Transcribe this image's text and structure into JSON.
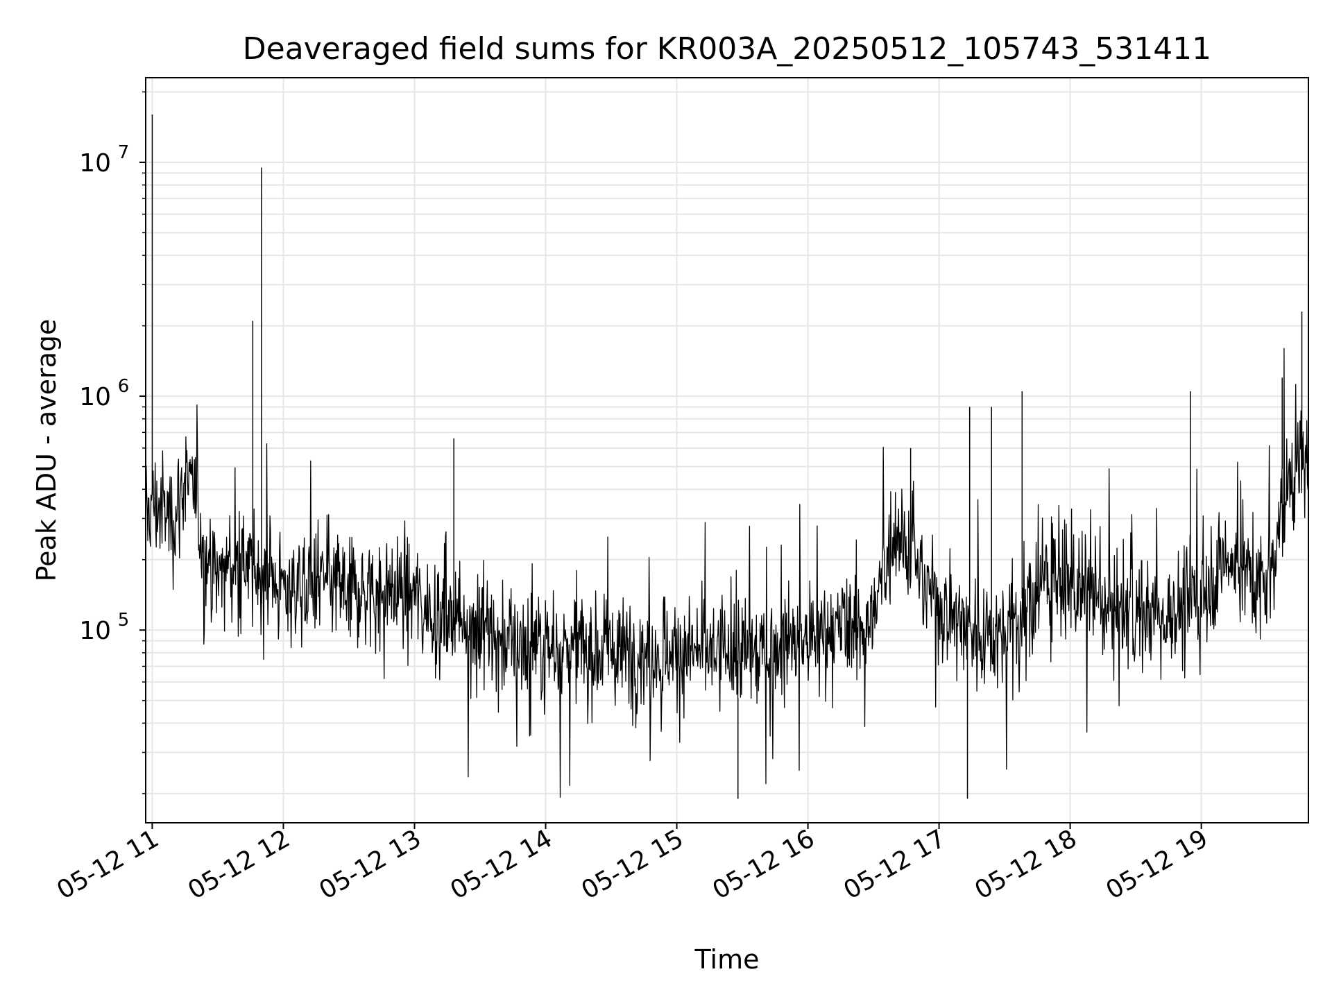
{
  "chart_data": {
    "type": "line",
    "title": "Deaveraged field sums for KR003A_20250512_105743_531411",
    "xlabel": "Time",
    "ylabel": "Peak ADU - average",
    "y_scale": "log",
    "ylim": [
      15000,
      23000000
    ],
    "xlim": [
      "2025-05-12 10:57",
      "2025-05-12 19:49"
    ],
    "grid": true,
    "line_color": "#000000",
    "grid_color": "#e6e6e6",
    "x_ticks": [
      {
        "t": "2025-05-12 11:00",
        "label": "05-12 11"
      },
      {
        "t": "2025-05-12 12:00",
        "label": "05-12 12"
      },
      {
        "t": "2025-05-12 13:00",
        "label": "05-12 13"
      },
      {
        "t": "2025-05-12 14:00",
        "label": "05-12 14"
      },
      {
        "t": "2025-05-12 15:00",
        "label": "05-12 15"
      },
      {
        "t": "2025-05-12 16:00",
        "label": "05-12 16"
      },
      {
        "t": "2025-05-12 17:00",
        "label": "05-12 17"
      },
      {
        "t": "2025-05-12 18:00",
        "label": "05-12 18"
      },
      {
        "t": "2025-05-12 19:00",
        "label": "05-12 19"
      }
    ],
    "y_ticks": [
      {
        "value": 100000,
        "base": "10",
        "exp": "5"
      },
      {
        "value": 1000000,
        "base": "10",
        "exp": "6"
      },
      {
        "value": 10000000,
        "base": "10",
        "exp": "7"
      }
    ],
    "series": [
      {
        "x": [
          "2025-05-12 10:57",
          "2025-05-12 11:00",
          "2025-05-12 11:05",
          "2025-05-12 11:10",
          "2025-05-12 11:15",
          "2025-05-12 11:20",
          "2025-05-12 11:25",
          "2025-05-12 11:30",
          "2025-05-12 11:35",
          "2025-05-12 11:40",
          "2025-05-12 11:45",
          "2025-05-12 11:50",
          "2025-05-12 11:55",
          "2025-05-12 12:00",
          "2025-05-12 12:10",
          "2025-05-12 12:20",
          "2025-05-12 12:30",
          "2025-05-12 12:40",
          "2025-05-12 12:50",
          "2025-05-12 13:00",
          "2025-05-12 13:10",
          "2025-05-12 13:20",
          "2025-05-12 13:30",
          "2025-05-12 13:40",
          "2025-05-12 13:50",
          "2025-05-12 14:00",
          "2025-05-12 14:15",
          "2025-05-12 14:30",
          "2025-05-12 14:45",
          "2025-05-12 15:00",
          "2025-05-12 15:15",
          "2025-05-12 15:30",
          "2025-05-12 15:45",
          "2025-05-12 16:00",
          "2025-05-12 16:15",
          "2025-05-12 16:30",
          "2025-05-12 16:40",
          "2025-05-12 16:50",
          "2025-05-12 17:00",
          "2025-05-12 17:10",
          "2025-05-12 17:20",
          "2025-05-12 17:30",
          "2025-05-12 17:40",
          "2025-05-12 17:50",
          "2025-05-12 18:00",
          "2025-05-12 18:15",
          "2025-05-12 18:30",
          "2025-05-12 18:45",
          "2025-05-12 19:00",
          "2025-05-12 19:10",
          "2025-05-12 19:20",
          "2025-05-12 19:30",
          "2025-05-12 19:40",
          "2025-05-12 19:49"
        ],
        "y": [
          300000,
          350000,
          320000,
          300000,
          450000,
          350000,
          180000,
          170000,
          190000,
          185000,
          180000,
          170000,
          160000,
          150000,
          155000,
          160000,
          150000,
          145000,
          150000,
          140000,
          120000,
          115000,
          110000,
          90000,
          88000,
          85000,
          85000,
          80000,
          80000,
          82000,
          80000,
          78000,
          85000,
          90000,
          100000,
          110000,
          300000,
          180000,
          130000,
          110000,
          95000,
          100000,
          120000,
          180000,
          150000,
          130000,
          120000,
          115000,
          140000,
          200000,
          180000,
          150000,
          450000,
          600000
        ]
      }
    ],
    "spikes": [
      {
        "t": "2025-05-12 11:00",
        "value": 16000000
      },
      {
        "t": "2025-05-12 11:46",
        "value": 2100000
      },
      {
        "t": "2025-05-12 11:50",
        "value": 9500000
      },
      {
        "t": "2025-05-12 13:18",
        "value": 660000
      },
      {
        "t": "2025-05-12 16:47",
        "value": 600000
      },
      {
        "t": "2025-05-12 17:14",
        "value": 900000
      },
      {
        "t": "2025-05-12 17:24",
        "value": 900000
      },
      {
        "t": "2025-05-12 17:38",
        "value": 1050000
      },
      {
        "t": "2025-05-12 18:55",
        "value": 1050000
      },
      {
        "t": "2025-05-12 19:37",
        "value": 1200000
      },
      {
        "t": "2025-05-12 19:46",
        "value": 2300000
      },
      {
        "t": "2025-05-12 15:28",
        "value": 19000
      },
      {
        "t": "2025-05-12 17:13",
        "value": 19000
      }
    ]
  }
}
